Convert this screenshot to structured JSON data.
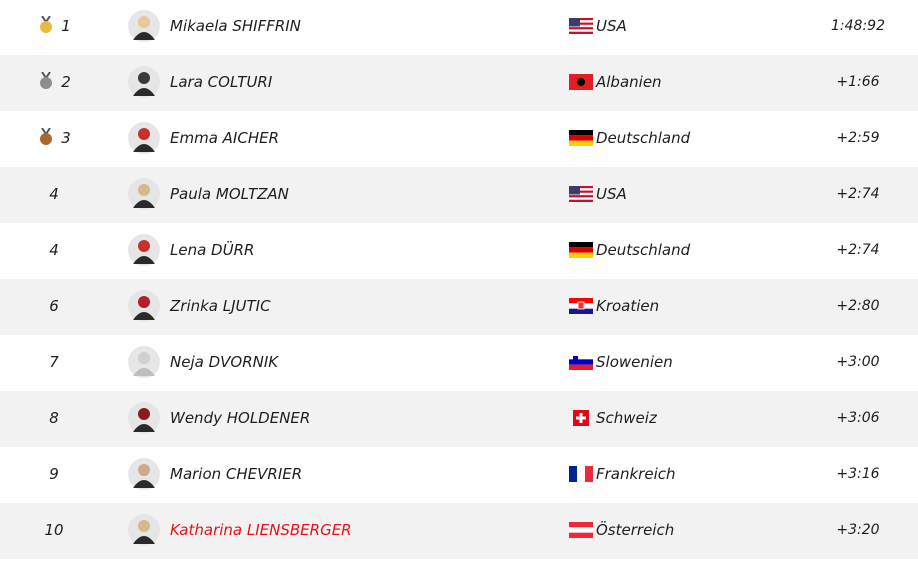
{
  "table": {
    "rows": [
      {
        "rank": "1",
        "name": "Mikaela SHIFFRIN",
        "country": "USA",
        "time": "1:48:92"
      },
      {
        "rank": "2",
        "name": "Lara COLTURI",
        "country": "Albanien",
        "time": "+1:66"
      },
      {
        "rank": "3",
        "name": "Emma AICHER",
        "country": "Deutschland",
        "time": "+2:59"
      },
      {
        "rank": "4",
        "name": "Paula MOLTZAN",
        "country": "USA",
        "time": "+2:74"
      },
      {
        "rank": "4",
        "name": "Lena DÜRR",
        "country": "Deutschland",
        "time": "+2:74"
      },
      {
        "rank": "6",
        "name": "Zrinka LJUTIC",
        "country": "Kroatien",
        "time": "+2:80"
      },
      {
        "rank": "7",
        "name": "Neja DVORNIK",
        "country": "Slowenien",
        "time": "+3:00"
      },
      {
        "rank": "8",
        "name": "Wendy HOLDENER",
        "country": "Schweiz",
        "time": "+3:06"
      },
      {
        "rank": "9",
        "name": "Marion CHEVRIER",
        "country": "Frankreich",
        "time": "+3:16"
      },
      {
        "rank": "10",
        "name": "Katharina LIENSBERGER",
        "country": "Österreich",
        "time": "+3:20",
        "highlight_color": "#e3131b"
      }
    ]
  }
}
